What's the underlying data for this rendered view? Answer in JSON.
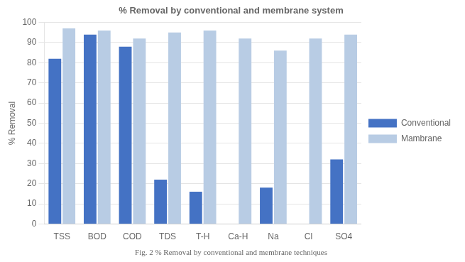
{
  "chart_data": {
    "type": "bar",
    "title": "% Removal by conventional and membrane system",
    "ylabel": "% Removal",
    "caption": "Fig. 2 % Removal by conventional and membrane techniques",
    "categories": [
      "TSS",
      "BOD",
      "COD",
      "TDS",
      "T-H",
      "Ca-H",
      "Na",
      "Cl",
      "SO4"
    ],
    "series": [
      {
        "name": "Conventional",
        "color": "#4472C4",
        "values": [
          82,
          94,
          88,
          22,
          16,
          0,
          18,
          0,
          32
        ]
      },
      {
        "name": "Mambrane",
        "color": "#B8CCE4",
        "values": [
          97,
          96,
          92,
          95,
          96,
          92,
          86,
          92,
          94
        ]
      }
    ],
    "ylim": [
      0,
      100
    ],
    "yticks": [
      0,
      10,
      20,
      30,
      40,
      50,
      60,
      70,
      80,
      90,
      100
    ],
    "grid": true,
    "legend": "right"
  }
}
